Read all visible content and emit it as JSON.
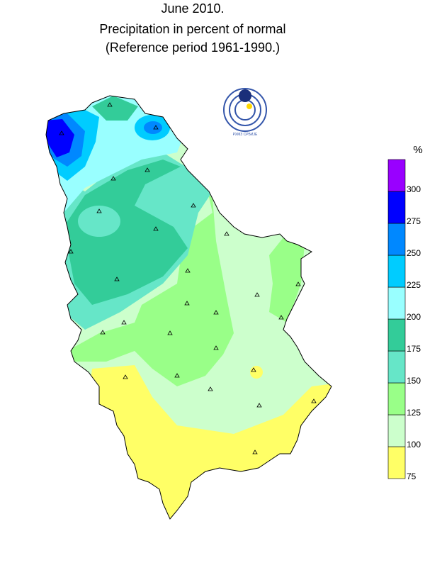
{
  "title": [
    "June 2010.",
    "Precipitation in percent of normal",
    "(Reference period 1961-1990.)"
  ],
  "logo_text": "РХМЗ СРБИЈЕ",
  "legend": {
    "unit": "%",
    "ticks": [
      75,
      100,
      125,
      150,
      175,
      200,
      225,
      250,
      275,
      300
    ],
    "colors": [
      "#ffff66",
      "#ccffcc",
      "#99ff88",
      "#66e6c8",
      "#33cc99",
      "#99ffff",
      "#00ccff",
      "#0088ff",
      "#0000ff",
      "#9900ff"
    ]
  }
}
